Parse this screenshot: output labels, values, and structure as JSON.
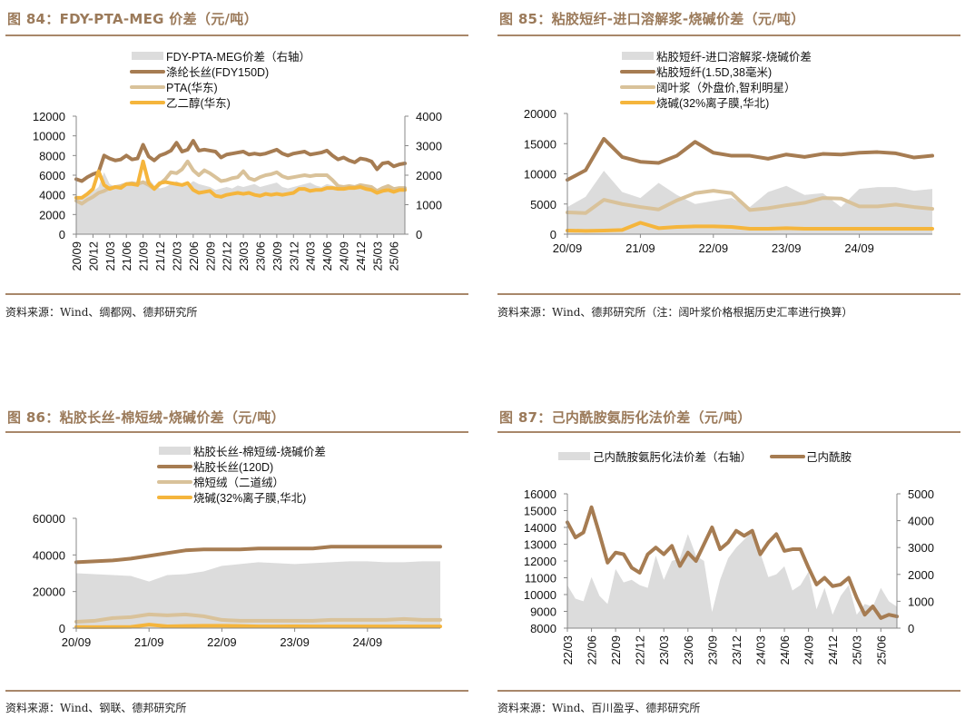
{
  "figures": [
    {
      "title": "图 84：FDY-PTA-MEG 价差（元/吨）",
      "source": "资料来源：Wind、绸都网、德邦研究所",
      "chart_data": {
        "type": "line",
        "title": "FDY-PTA-MEG 价差（元/吨）",
        "x_ticks": [
          "20/09",
          "20/12",
          "21/03",
          "21/06",
          "21/09",
          "21/12",
          "22/03",
          "22/06",
          "22/09",
          "22/12",
          "23/03",
          "23/06",
          "23/09",
          "23/12",
          "24/03",
          "24/06",
          "24/09",
          "24/12",
          "25/03",
          "25/06"
        ],
        "ylim_left": [
          0,
          12000
        ],
        "yticks_left": [
          0,
          2000,
          4000,
          6000,
          8000,
          10000,
          12000
        ],
        "ylim_right": [
          0,
          4000
        ],
        "yticks_right": [
          0,
          1000,
          2000,
          3000,
          4000
        ],
        "legend": [
          "FDY-PTA-MEG价差（右轴）",
          "涤纶长丝(FDY150D)",
          "PTA(华东)",
          "乙二醇(华东)"
        ],
        "x": [
          "20/09",
          "20/10",
          "20/11",
          "20/12",
          "21/01",
          "21/02",
          "21/03",
          "21/04",
          "21/05",
          "21/06",
          "21/07",
          "21/08",
          "21/09",
          "21/10",
          "21/11",
          "21/12",
          "22/01",
          "22/02",
          "22/03",
          "22/04",
          "22/05",
          "22/06",
          "22/07",
          "22/08",
          "22/09",
          "22/10",
          "22/11",
          "22/12",
          "23/01",
          "23/02",
          "23/03",
          "23/04",
          "23/05",
          "23/06",
          "23/07",
          "23/08",
          "23/09",
          "23/10",
          "23/11",
          "23/12",
          "24/01",
          "24/02",
          "24/03",
          "24/04",
          "24/05",
          "24/06",
          "24/07",
          "24/08",
          "24/09",
          "24/10",
          "24/11",
          "24/12",
          "25/01",
          "25/02",
          "25/03",
          "25/04",
          "25/05",
          "25/06",
          "25/07",
          "25/08"
        ],
        "series": [
          {
            "name": "FDY-PTA-MEG价差（右轴）",
            "type": "area",
            "axis": "right",
            "color": "#dcdcdc",
            "values": [
              1250,
              1300,
              1350,
              1450,
              1600,
              2100,
              1700,
              1600,
              1650,
              1700,
              1750,
              1650,
              1750,
              1900,
              1650,
              1550,
              1600,
              1700,
              1800,
              1700,
              1650,
              1800,
              1700,
              1650,
              1600,
              1500,
              1550,
              1600,
              1550,
              1650,
              1600,
              1650,
              1700,
              1600,
              1650,
              1700,
              1750,
              1600,
              1550,
              1600,
              1650,
              1700,
              1750,
              1650,
              1600,
              1700,
              1650,
              1600,
              1550,
              1600,
              1650,
              1600,
              1550,
              1500,
              1350,
              1450,
              1500,
              1400,
              1450,
              1450
            ]
          },
          {
            "name": "涤纶长丝(FDY150D)",
            "type": "line",
            "axis": "left",
            "color": "#a67c52",
            "values": [
              5600,
              5400,
              5800,
              6100,
              6300,
              8000,
              7700,
              7500,
              7600,
              8000,
              7600,
              7700,
              9100,
              7900,
              7500,
              8000,
              8200,
              8500,
              9300,
              8400,
              8600,
              9500,
              8500,
              8600,
              8500,
              8400,
              7800,
              8100,
              8200,
              8300,
              8400,
              8100,
              8200,
              8100,
              8200,
              8400,
              8600,
              8200,
              8000,
              8200,
              8300,
              8400,
              8100,
              8200,
              8300,
              8500,
              8000,
              7600,
              7800,
              7500,
              7300,
              7700,
              7600,
              7400,
              6600,
              7200,
              7300,
              6900,
              7100,
              7200
            ]
          },
          {
            "name": "PTA(华东)",
            "type": "line",
            "axis": "left",
            "color": "#d9c29a",
            "values": [
              3400,
              3100,
              3500,
              3800,
              4200,
              4400,
              4700,
              4800,
              4900,
              5100,
              5200,
              5100,
              5300,
              5000,
              4600,
              5100,
              5600,
              6300,
              6200,
              6600,
              7400,
              6500,
              6000,
              6500,
              6200,
              5800,
              5400,
              5500,
              5700,
              5800,
              6400,
              5700,
              5500,
              5800,
              6000,
              6100,
              6300,
              5900,
              5700,
              5800,
              5900,
              6000,
              5900,
              6000,
              6000,
              6000,
              5500,
              4900,
              4800,
              4900,
              4800,
              5000,
              4900,
              4800,
              4400,
              4700,
              4900,
              4600,
              4700,
              4700
            ]
          },
          {
            "name": "乙二醇(华东)",
            "type": "line",
            "axis": "left",
            "color": "#f5b53c",
            "values": [
              3700,
              3700,
              4100,
              4600,
              6400,
              5000,
              4600,
              4800,
              4700,
              5100,
              5100,
              5000,
              7400,
              5200,
              4600,
              5200,
              5300,
              5200,
              5100,
              5000,
              5200,
              4500,
              4200,
              4300,
              4400,
              3900,
              3800,
              4000,
              4100,
              4200,
              4100,
              4200,
              4000,
              3900,
              4100,
              4000,
              4100,
              4000,
              4100,
              4200,
              4600,
              4600,
              4400,
              4500,
              4500,
              4700,
              4700,
              4600,
              4600,
              4700,
              4700,
              4800,
              4600,
              4500,
              4200,
              4400,
              4500,
              4300,
              4500,
              4500
            ]
          }
        ]
      }
    },
    {
      "title": "图 85：粘胶短纤-进口溶解浆-烧碱价差（元/吨）",
      "source": "资料来源：Wind、德邦研究所（注：阔叶浆价格根据历史汇率进行换算）",
      "chart_data": {
        "type": "line",
        "title": "粘胶短纤-进口溶解浆-烧碱价差（元/吨）",
        "x_ticks": [
          "20/09",
          "21/09",
          "22/09",
          "23/09",
          "24/09"
        ],
        "ylim": [
          0,
          20000
        ],
        "yticks": [
          0,
          5000,
          10000,
          15000,
          20000
        ],
        "legend": [
          "粘胶短纤-进口溶解浆-烧碱价差",
          "粘胶短纤(1.5D,38毫米)",
          "阔叶浆（外盘价,智利明星）",
          "烧碱(32%离子膜,华北)"
        ],
        "x": [
          "20/09",
          "20/12",
          "21/03",
          "21/06",
          "21/09",
          "21/12",
          "22/03",
          "22/06",
          "22/09",
          "22/12",
          "23/03",
          "23/06",
          "23/09",
          "23/12",
          "24/03",
          "24/06",
          "24/09",
          "24/12",
          "25/03",
          "25/06",
          "25/08"
        ],
        "series": [
          {
            "name": "粘胶短纤-进口溶解浆-烧碱价差",
            "type": "area",
            "color": "#dcdcdc",
            "values": [
              4500,
              6200,
              10500,
              7000,
              6000,
              8500,
              6500,
              5000,
              5500,
              6000,
              4500,
              7000,
              8000,
              6500,
              6800,
              4500,
              7500,
              7800,
              7800,
              7200,
              7500
            ]
          },
          {
            "name": "粘胶短纤(1.5D,38毫米)",
            "type": "line",
            "color": "#a67c52",
            "values": [
              9000,
              10600,
              15800,
              12800,
              12000,
              11800,
              13000,
              15300,
              13500,
              13000,
              13000,
              12500,
              13200,
              12800,
              13300,
              13200,
              13500,
              13600,
              13400,
              12700,
              13000
            ]
          },
          {
            "name": "阔叶浆（外盘价,智利明星）",
            "type": "line",
            "color": "#d9c29a",
            "values": [
              3600,
              3500,
              5700,
              5000,
              4500,
              4100,
              5600,
              6800,
              7200,
              6800,
              4000,
              4300,
              4800,
              5200,
              6000,
              5900,
              4600,
              4600,
              4900,
              4500,
              4200
            ]
          },
          {
            "name": "烧碱(32%离子膜,华北)",
            "type": "line",
            "color": "#f5b53c",
            "values": [
              600,
              550,
              600,
              700,
              1900,
              1000,
              1200,
              1300,
              1300,
              1200,
              900,
              900,
              1000,
              900,
              900,
              900,
              900,
              900,
              900,
              900,
              900
            ]
          }
        ]
      }
    },
    {
      "title": "图 86：粘胶长丝-棉短绒-烧碱价差（元/吨）",
      "source": "资料来源：Wind、钢联、德邦研究所",
      "chart_data": {
        "type": "line",
        "title": "粘胶长丝-棉短绒-烧碱价差（元/吨）",
        "x_ticks": [
          "20/09",
          "21/09",
          "22/09",
          "23/09",
          "24/09"
        ],
        "ylim": [
          0,
          60000
        ],
        "yticks": [
          0,
          20000,
          40000,
          60000
        ],
        "legend": [
          "粘胶长丝-棉短绒-烧碱价差",
          "粘胶长丝(120D)",
          "棉短绒（二道绒）",
          "烧碱(32%离子膜,华北)"
        ],
        "x": [
          "20/09",
          "20/12",
          "21/03",
          "21/06",
          "21/09",
          "21/12",
          "22/03",
          "22/06",
          "22/09",
          "22/12",
          "23/03",
          "23/06",
          "23/09",
          "23/12",
          "24/03",
          "24/06",
          "24/09",
          "24/12",
          "25/03",
          "25/06",
          "25/08"
        ],
        "series": [
          {
            "name": "粘胶长丝-棉短绒-烧碱价差",
            "type": "area",
            "color": "#dcdcdc",
            "values": [
              30000,
              29500,
              29000,
              28500,
              25500,
              29000,
              29500,
              31000,
              34000,
              35000,
              36000,
              35500,
              35000,
              35500,
              36000,
              36500,
              36500,
              36000,
              36000,
              36500,
              36500
            ]
          },
          {
            "name": "粘胶长丝(120D)",
            "type": "line",
            "color": "#a67c52",
            "values": [
              36000,
              36500,
              37000,
              38000,
              39500,
              41000,
              42500,
              43000,
              43000,
              43000,
              43500,
              43500,
              43500,
              43500,
              44500,
              44500,
              44500,
              44500,
              44500,
              44500,
              44500
            ]
          },
          {
            "name": "棉短绒（二道绒）",
            "type": "line",
            "color": "#d9c29a",
            "values": [
              3500,
              4000,
              5500,
              6000,
              7500,
              7000,
              7500,
              6500,
              4500,
              4000,
              4000,
              4000,
              4000,
              4000,
              4500,
              4500,
              4500,
              4500,
              5000,
              4500,
              4500
            ]
          },
          {
            "name": "烧碱(32%离子膜,华北)",
            "type": "line",
            "color": "#f5b53c",
            "values": [
              600,
              550,
              600,
              700,
              1900,
              1000,
              1200,
              1300,
              1300,
              1200,
              900,
              900,
              1000,
              900,
              900,
              900,
              900,
              900,
              900,
              900,
              900
            ]
          }
        ]
      }
    },
    {
      "title": "图 87：己内酰胺氨肟化法价差（元/吨）",
      "source": "资料来源：Wind、百川盈孚、德邦研究所",
      "chart_data": {
        "type": "line",
        "title": "己内酰胺氨肟化法价差（元/吨）",
        "x_ticks": [
          "22/03",
          "22/06",
          "22/09",
          "22/12",
          "23/03",
          "23/06",
          "23/09",
          "23/12",
          "24/03",
          "24/06",
          "24/09",
          "24/12",
          "25/03",
          "25/06"
        ],
        "ylim_left": [
          8000,
          16000
        ],
        "yticks_left": [
          8000,
          9000,
          10000,
          11000,
          12000,
          13000,
          14000,
          15000,
          16000
        ],
        "ylim_right": [
          0,
          5000
        ],
        "yticks_right": [
          0,
          1000,
          2000,
          3000,
          4000,
          5000
        ],
        "legend": [
          "己内酰胺氨肟化法价差（右轴）",
          "己内酰胺"
        ],
        "x": [
          "22/03",
          "22/04",
          "22/05",
          "22/06",
          "22/07",
          "22/08",
          "22/09",
          "22/10",
          "22/11",
          "22/12",
          "23/01",
          "23/02",
          "23/03",
          "23/04",
          "23/05",
          "23/06",
          "23/07",
          "23/08",
          "23/09",
          "23/10",
          "23/11",
          "23/12",
          "24/01",
          "24/02",
          "24/03",
          "24/04",
          "24/05",
          "24/06",
          "24/07",
          "24/08",
          "24/09",
          "24/10",
          "24/11",
          "24/12",
          "25/01",
          "25/02",
          "25/03",
          "25/04",
          "25/05",
          "25/06",
          "25/07",
          "25/08"
        ],
        "series": [
          {
            "name": "己内酰胺氨肟化法价差（右轴）",
            "type": "area",
            "axis": "right",
            "color": "#dcdcdc",
            "values": [
              1600,
              1100,
              1000,
              1900,
              1200,
              900,
              2200,
              1700,
              1800,
              1600,
              1500,
              2700,
              1800,
              2500,
              2600,
              3500,
              2700,
              2500,
              600,
              1800,
              2600,
              3000,
              3300,
              3600,
              2800,
              1900,
              2000,
              2300,
              1400,
              1600,
              2100,
              700,
              1500,
              500,
              1200,
              1600,
              500,
              900,
              800,
              1500,
              1000,
              800
            ]
          },
          {
            "name": "己内酰胺",
            "type": "line",
            "axis": "left",
            "color": "#a67c52",
            "values": [
              14300,
              13400,
              13700,
              15200,
              13600,
              11900,
              12500,
              12400,
              11600,
              11300,
              12400,
              12800,
              12400,
              12900,
              11700,
              12500,
              12000,
              13000,
              14000,
              12700,
              13100,
              13800,
              13500,
              13800,
              12400,
              13100,
              13600,
              12600,
              12700,
              12700,
              11600,
              10600,
              11000,
              10500,
              10600,
              11000,
              9800,
              8800,
              9300,
              8600,
              8800,
              8700
            ]
          }
        ]
      }
    }
  ]
}
